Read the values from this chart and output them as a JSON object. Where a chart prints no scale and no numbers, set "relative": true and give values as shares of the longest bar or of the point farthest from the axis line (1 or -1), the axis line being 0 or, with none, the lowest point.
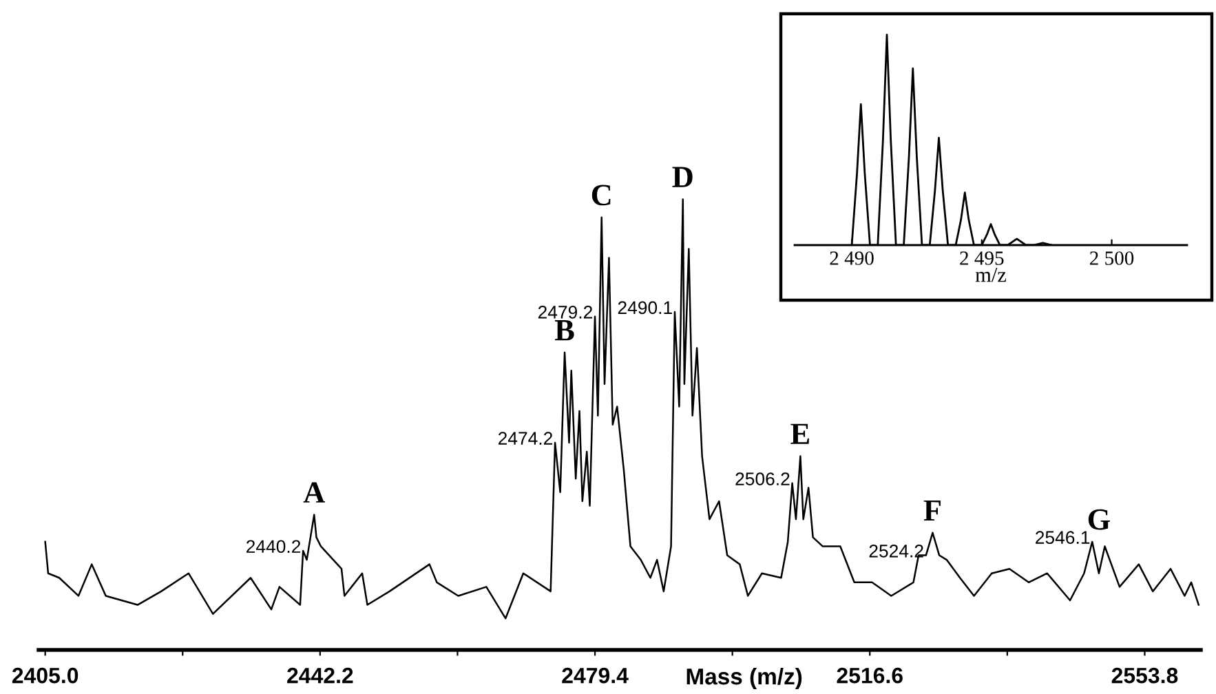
{
  "chart_data": [
    {
      "type": "line",
      "relative": true,
      "color": "#000000",
      "xlabel": "Mass (m/z)",
      "xlim": [
        2404.1,
        2561.4
      ],
      "xticks": [
        {
          "value": 2405.0,
          "label": "2405.0"
        },
        {
          "value": 2423.6,
          "label": null
        },
        {
          "value": 2442.2,
          "label": "2442.2"
        },
        {
          "value": 2460.8,
          "label": null
        },
        {
          "value": 2479.4,
          "label": "2479.4"
        },
        {
          "value": 2498.0,
          "label": null
        },
        {
          "value": 2516.6,
          "label": "2516.6"
        },
        {
          "value": 2535.2,
          "label": null
        },
        {
          "value": 2553.8,
          "label": "2553.8"
        }
      ],
      "x": [
        2405.0,
        2405.4,
        2406.9,
        2409.5,
        2411.3,
        2413.2,
        2417.5,
        2420.7,
        2424.4,
        2427.7,
        2432.8,
        2435.6,
        2436.7,
        2439.5,
        2439.9,
        2440.4,
        2441.4,
        2441.7,
        2442.3,
        2445.1,
        2445.5,
        2447.9,
        2448.6,
        2451.6,
        2457.0,
        2458.0,
        2460.9,
        2464.7,
        2467.3,
        2469.7,
        2473.4,
        2474.0,
        2474.7,
        2475.3,
        2475.9,
        2476.2,
        2476.8,
        2477.3,
        2477.7,
        2478.3,
        2478.7,
        2479.4,
        2479.8,
        2480.3,
        2480.7,
        2481.3,
        2481.8,
        2482.4,
        2483.3,
        2484.2,
        2485.6,
        2486.9,
        2487.8,
        2488.7,
        2489.7,
        2490.2,
        2490.8,
        2491.3,
        2491.5,
        2492.1,
        2492.6,
        2493.2,
        2493.9,
        2494.9,
        2496.2,
        2497.3,
        2499.0,
        2500.1,
        2502.0,
        2504.6,
        2505.5,
        2506.1,
        2506.6,
        2507.2,
        2507.6,
        2508.3,
        2508.9,
        2510.2,
        2512.6,
        2514.5,
        2516.9,
        2519.5,
        2522.5,
        2523.2,
        2524.2,
        2525.1,
        2526.0,
        2527.0,
        2528.8,
        2530.7,
        2533.1,
        2535.5,
        2538.1,
        2540.6,
        2543.7,
        2545.6,
        2546.7,
        2547.6,
        2548.4,
        2550.4,
        2553.0,
        2554.9,
        2557.3,
        2559.2,
        2560.1,
        2561.1
      ],
      "values": [
        0.24,
        0.17,
        0.16,
        0.12,
        0.19,
        0.12,
        0.1,
        0.13,
        0.17,
        0.08,
        0.16,
        0.09,
        0.14,
        0.1,
        0.22,
        0.2,
        0.3,
        0.25,
        0.23,
        0.18,
        0.12,
        0.17,
        0.1,
        0.13,
        0.19,
        0.15,
        0.12,
        0.14,
        0.07,
        0.17,
        0.13,
        0.46,
        0.35,
        0.66,
        0.46,
        0.62,
        0.38,
        0.53,
        0.33,
        0.44,
        0.32,
        0.74,
        0.52,
        0.96,
        0.59,
        0.87,
        0.5,
        0.54,
        0.4,
        0.23,
        0.2,
        0.16,
        0.2,
        0.13,
        0.23,
        0.75,
        0.54,
        1,
        0.59,
        0.89,
        0.52,
        0.67,
        0.43,
        0.29,
        0.33,
        0.21,
        0.19,
        0.12,
        0.17,
        0.16,
        0.24,
        0.37,
        0.29,
        0.43,
        0.29,
        0.36,
        0.25,
        0.23,
        0.23,
        0.15,
        0.15,
        0.12,
        0.15,
        0.21,
        0.21,
        0.26,
        0.21,
        0.2,
        0.16,
        0.12,
        0.17,
        0.18,
        0.15,
        0.17,
        0.11,
        0.17,
        0.24,
        0.17,
        0.23,
        0.14,
        0.19,
        0.13,
        0.18,
        0.12,
        0.15,
        0.1
      ],
      "annotations": [
        {
          "text": "A",
          "x": 2441.4,
          "y": 0.3
        },
        {
          "text": "2440.2",
          "x": 2439.9,
          "y": 0.22
        },
        {
          "text": "B",
          "x": 2475.3,
          "y": 0.66
        },
        {
          "text": "2474.2",
          "x": 2474.0,
          "y": 0.46
        },
        {
          "text": "C",
          "x": 2480.3,
          "y": 0.96
        },
        {
          "text": "2479.2",
          "x": 2479.4,
          "y": 0.74
        },
        {
          "text": "D",
          "x": 2491.3,
          "y": 1
        },
        {
          "text": "2490.1",
          "x": 2490.2,
          "y": 0.75
        },
        {
          "text": "E",
          "x": 2507.2,
          "y": 0.43
        },
        {
          "text": "2506.2",
          "x": 2506.1,
          "y": 0.37
        },
        {
          "text": "F",
          "x": 2525.1,
          "y": 0.26
        },
        {
          "text": "2524.2",
          "x": 2524.2,
          "y": 0.21
        },
        {
          "text": "G",
          "x": 2547.6,
          "y": 0.24
        },
        {
          "text": "2546.1",
          "x": 2546.7,
          "y": 0.24
        }
      ]
    },
    {
      "type": "line",
      "relative": true,
      "color": "#000000",
      "xlabel": "m/z",
      "xlim": [
        2487.8,
        2502.9
      ],
      "xticks": [
        {
          "value": 2490,
          "label": "2 490"
        },
        {
          "value": 2495,
          "label": "2 495"
        },
        {
          "value": 2500,
          "label": "2 500"
        }
      ],
      "x": [
        2490.0,
        2490.2,
        2490.35,
        2490.5,
        2490.7,
        2491.0,
        2491.2,
        2491.35,
        2491.5,
        2491.7,
        2492.0,
        2492.2,
        2492.35,
        2492.5,
        2492.7,
        2493.0,
        2493.2,
        2493.35,
        2493.5,
        2493.7,
        2494.0,
        2494.2,
        2494.35,
        2494.5,
        2494.7,
        2495.0,
        2495.2,
        2495.35,
        2495.5,
        2495.7,
        2496.0,
        2496.35,
        2496.7,
        2497.0,
        2497.35,
        2497.7
      ],
      "values": [
        0,
        0.34,
        0.67,
        0.34,
        0,
        0,
        0.5,
        1,
        0.5,
        0,
        0,
        0.42,
        0.84,
        0.42,
        0,
        0,
        0.26,
        0.51,
        0.26,
        0,
        0,
        0.12,
        0.25,
        0.12,
        0,
        0,
        0.05,
        0.1,
        0.05,
        0,
        0,
        0.03,
        0,
        0,
        0.01,
        0
      ]
    }
  ]
}
